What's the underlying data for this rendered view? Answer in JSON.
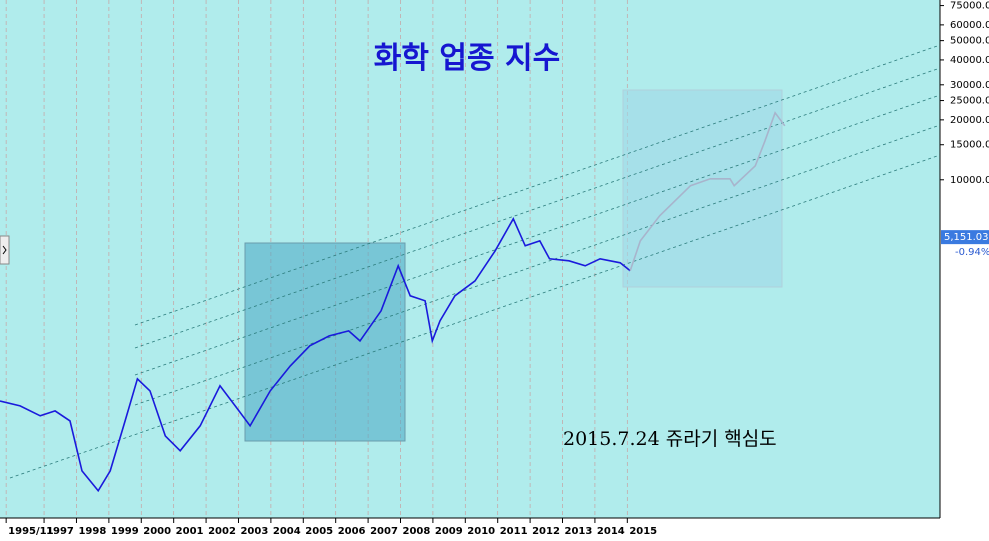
{
  "chart_data": {
    "type": "line",
    "title": "화학 업종 지수",
    "annotation": "2015.7.24 쥬라기 핵심도",
    "log_scale": true,
    "grid": true,
    "xlim": [
      1995.64,
      2024.65
    ],
    "ylim": [
      200,
      80000
    ],
    "xticks": [
      {
        "value": 1995.83,
        "label": "1995/11"
      },
      1997,
      1998,
      1999,
      2000,
      2001,
      2002,
      2003,
      2004,
      2005,
      2006,
      2007,
      2008,
      2009,
      2010,
      2011,
      2012,
      2013,
      2014,
      2015
    ],
    "yticks": [
      {
        "value": 10000,
        "label": "10000.00"
      },
      {
        "value": 15000,
        "label": "15000.00"
      },
      {
        "value": 20000,
        "label": "20000.00"
      },
      {
        "value": 25000,
        "label": "25000.00"
      },
      {
        "value": 30000,
        "label": "30000.00"
      },
      {
        "value": 40000,
        "label": "40000.00"
      },
      {
        "value": 50000,
        "label": "50000.00"
      },
      {
        "value": 60000,
        "label": "60000.00"
      },
      {
        "value": 75000,
        "label": "75000.00"
      }
    ],
    "last_value": {
      "value": 5151.03,
      "label": "5,151.03"
    },
    "change_label": "-0.94%",
    "x": [
      1995.64,
      1996.26,
      1996.88,
      1997.34,
      1997.8,
      1998.17,
      1998.67,
      1999.04,
      1999.5,
      1999.88,
      2000.27,
      2000.74,
      2001.2,
      2001.82,
      2002.43,
      2002.9,
      2003.36,
      2003.98,
      2004.6,
      2005.2,
      2005.8,
      2006.4,
      2006.75,
      2007.4,
      2007.93,
      2008.3,
      2008.76,
      2008.98,
      2009.22,
      2009.68,
      2010.3,
      2010.92,
      2011.48,
      2011.85,
      2012.3,
      2012.6,
      2013.2,
      2013.7,
      2014.16,
      2014.78,
      2015.09,
      2015.4,
      2016.0,
      2016.95,
      2017.56,
      2018.17,
      2018.3,
      2018.95,
      2019.25,
      2019.56,
      2019.86
    ],
    "series": [
      {
        "color": "#1a1adc",
        "values": [
          774,
          731,
          652,
          690,
          615,
          345,
          274,
          345,
          615,
          1000,
          870,
          517,
          435,
          581,
          923,
          731,
          581,
          870,
          1161,
          1465,
          1644,
          1742,
          1552,
          2198,
          3698,
          2612,
          2466,
          1552,
          1955,
          2612,
          3105,
          4393,
          6368,
          4658,
          4933,
          4011,
          3918,
          3698,
          4011,
          3828,
          3491,
          null,
          null,
          null,
          null,
          null,
          null,
          null,
          null,
          null,
          null
        ]
      },
      {
        "color": "#a8b4cc",
        "values": [
          null,
          null,
          null,
          null,
          null,
          null,
          null,
          null,
          null,
          null,
          null,
          null,
          null,
          null,
          null,
          null,
          null,
          null,
          null,
          null,
          null,
          null,
          null,
          null,
          null,
          null,
          null,
          null,
          null,
          null,
          null,
          null,
          null,
          null,
          null,
          null,
          null,
          null,
          null,
          null,
          3491,
          4933,
          6592,
          9333,
          10116,
          10116,
          9333,
          11758,
          15693,
          21710,
          18660
        ]
      }
    ]
  }
}
